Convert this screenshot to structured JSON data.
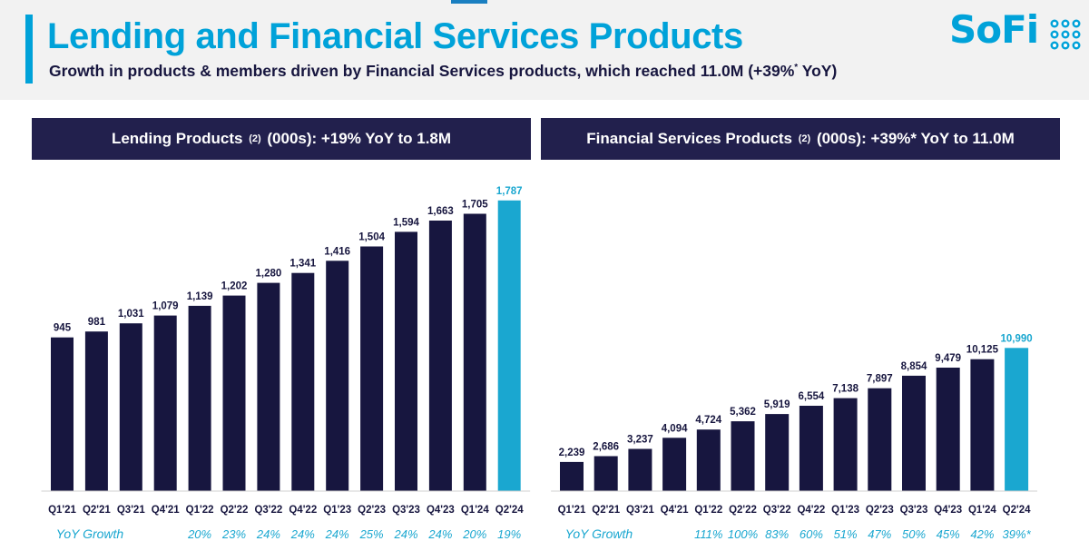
{
  "header": {
    "title": "Lending and Financial Services Products",
    "subtitle_main": "Growth in products & members driven by Financial Services products, which reached 11.0M (+39%",
    "subtitle_sup": "*",
    "subtitle_end": " YoY)",
    "logo_text": "SoFi"
  },
  "colors": {
    "brand": "#00a2d9",
    "navy": "#17163f",
    "header_bg": "#22204d",
    "highlight_bar": "#1aa7d0"
  },
  "chart_data": [
    {
      "type": "bar",
      "title_pre": "Lending Products",
      "title_sup": "(2)",
      "title_post": "(000s): +19% YoY to 1.8M",
      "categories": [
        "Q1'21",
        "Q2'21",
        "Q3'21",
        "Q4'21",
        "Q1'22",
        "Q2'22",
        "Q3'22",
        "Q4'22",
        "Q1'23",
        "Q2'23",
        "Q3'23",
        "Q4'23",
        "Q1'24",
        "Q2'24"
      ],
      "values": [
        945,
        981,
        1031,
        1079,
        1139,
        1202,
        1280,
        1341,
        1416,
        1504,
        1594,
        1663,
        1705,
        1787
      ],
      "value_labels": [
        "945",
        "981",
        "1,031",
        "1,079",
        "1,139",
        "1,202",
        "1,280",
        "1,341",
        "1,416",
        "1,504",
        "1,594",
        "1,663",
        "1,705",
        "1,787"
      ],
      "highlight_index": 13,
      "growth_title": "YoY Growth",
      "yoy_growth": [
        "",
        "",
        "",
        "",
        "20%",
        "23%",
        "24%",
        "24%",
        "24%",
        "25%",
        "24%",
        "24%",
        "20%",
        "19%"
      ]
    },
    {
      "type": "bar",
      "title_pre": "Financial Services Products",
      "title_sup": "(2)",
      "title_post": "(000s): +39%* YoY to 11.0M",
      "categories": [
        "Q1'21",
        "Q2'21",
        "Q3'21",
        "Q4'21",
        "Q1'22",
        "Q2'22",
        "Q3'22",
        "Q4'22",
        "Q1'23",
        "Q2'23",
        "Q3'23",
        "Q4'23",
        "Q1'24",
        "Q2'24"
      ],
      "values": [
        2239,
        2686,
        3237,
        4094,
        4724,
        5362,
        5919,
        6554,
        7138,
        7897,
        8854,
        9479,
        10125,
        10990
      ],
      "value_labels": [
        "2,239",
        "2,686",
        "3,237",
        "4,094",
        "4,724",
        "5,362",
        "5,919",
        "6,554",
        "7,138",
        "7,897",
        "8,854",
        "9,479",
        "10,125",
        "10,990"
      ],
      "highlight_index": 13,
      "growth_title": "YoY Growth",
      "yoy_growth": [
        "",
        "",
        "",
        "",
        "111%",
        "100%",
        "83%",
        "60%",
        "51%",
        "47%",
        "50%",
        "45%",
        "42%",
        "39%*"
      ]
    }
  ]
}
